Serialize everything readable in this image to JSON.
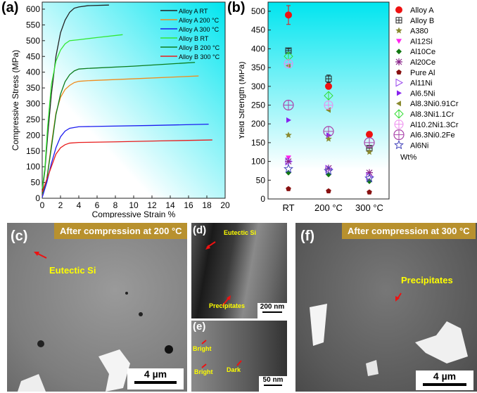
{
  "panel_labels": {
    "a": "(a)",
    "b": "(b)",
    "c": "(c)",
    "d": "(d)",
    "e": "(e)",
    "f": "(f)"
  },
  "chart_data": [
    {
      "type": "line",
      "xlabel": "Compressive Strain %",
      "ylabel": "Compressive Stress (MPa)",
      "xlim": [
        0,
        20
      ],
      "ylim": [
        0,
        620
      ],
      "xticks": [
        0,
        2,
        4,
        6,
        8,
        10,
        12,
        14,
        16,
        18,
        20
      ],
      "yticks": [
        0,
        50,
        100,
        150,
        200,
        250,
        300,
        350,
        400,
        450,
        500,
        550,
        600
      ],
      "legend_position": "top-right",
      "series": [
        {
          "name": "Alloy A RT",
          "color": "#222222",
          "points": [
            [
              0,
              20
            ],
            [
              0.3,
              90
            ],
            [
              0.6,
              200
            ],
            [
              1,
              330
            ],
            [
              1.5,
              450
            ],
            [
              2,
              525
            ],
            [
              2.5,
              565
            ],
            [
              3,
              590
            ],
            [
              3.5,
              603
            ],
            [
              4,
              607
            ],
            [
              5,
              611
            ],
            [
              7.3,
              613
            ]
          ]
        },
        {
          "name": "Alloy A 200 °C",
          "color": "#f08c1e",
          "points": [
            [
              0,
              5
            ],
            [
              0.5,
              60
            ],
            [
              1,
              170
            ],
            [
              1.5,
              270
            ],
            [
              2,
              320
            ],
            [
              2.5,
              345
            ],
            [
              3,
              358
            ],
            [
              3.5,
              367
            ],
            [
              4,
              371
            ],
            [
              5,
              373
            ],
            [
              10,
              379
            ],
            [
              17.1,
              388
            ]
          ]
        },
        {
          "name": "Alloy A 300 °C",
          "color": "#1c1cf0",
          "points": [
            [
              0,
              3
            ],
            [
              0.5,
              50
            ],
            [
              1,
              110
            ],
            [
              1.5,
              160
            ],
            [
              2,
              195
            ],
            [
              2.5,
              213
            ],
            [
              3,
              222
            ],
            [
              4,
              227
            ],
            [
              6,
              228
            ],
            [
              12,
              231
            ],
            [
              18.2,
              235
            ]
          ]
        },
        {
          "name": "Alloy B RT",
          "color": "#33e833",
          "points": [
            [
              0,
              30
            ],
            [
              0.3,
              100
            ],
            [
              0.6,
              230
            ],
            [
              1,
              360
            ],
            [
              1.5,
              435
            ],
            [
              2,
              470
            ],
            [
              2.5,
              490
            ],
            [
              3,
              500
            ],
            [
              4,
              503
            ],
            [
              6,
              510
            ],
            [
              8.8,
              519
            ]
          ]
        },
        {
          "name": "Alloy B 200 °C",
          "color": "#0b7d1e",
          "points": [
            [
              0,
              15
            ],
            [
              0.5,
              60
            ],
            [
              1,
              160
            ],
            [
              1.5,
              265
            ],
            [
              2,
              330
            ],
            [
              2.5,
              370
            ],
            [
              3,
              392
            ],
            [
              3.5,
              404
            ],
            [
              4,
              410
            ],
            [
              5,
              412
            ],
            [
              10,
              419
            ],
            [
              16.7,
              431
            ]
          ]
        },
        {
          "name": "Alloy B 300 °C",
          "color": "#e81c1c",
          "points": [
            [
              0,
              20
            ],
            [
              0.5,
              60
            ],
            [
              1,
              100
            ],
            [
              1.5,
              140
            ],
            [
              2,
              160
            ],
            [
              2.5,
              170
            ],
            [
              3,
              175
            ],
            [
              4,
              177
            ],
            [
              8,
              179
            ],
            [
              13,
              182
            ],
            [
              18.6,
              185
            ]
          ]
        }
      ]
    },
    {
      "type": "scatter",
      "ylabel": "Yield Strength (MPa)",
      "categories": [
        "RT",
        "200 °C",
        "300 °C"
      ],
      "ylim": [
        0,
        520
      ],
      "yticks": [
        0,
        50,
        100,
        150,
        200,
        250,
        300,
        350,
        400,
        450,
        500
      ],
      "legend_position": "right",
      "legend_note": "Wt%",
      "series": [
        {
          "name": "Alloy A",
          "marker": "circle-filled",
          "color": "#ee1111",
          "values": [
            490,
            300,
            172
          ],
          "error": [
            25,
            null,
            null
          ]
        },
        {
          "name": "Alloy B",
          "marker": "square-plus",
          "color": "#222222",
          "values": [
            395,
            320,
            135
          ],
          "error": [
            5,
            10,
            6
          ]
        },
        {
          "name": "A380",
          "marker": "star-filled",
          "color": "#8a8a30",
          "values": [
            170,
            160,
            125
          ]
        },
        {
          "name": "Al12Si",
          "marker": "triangle-down-filled",
          "color": "#ff22ee",
          "values": [
            110,
            null,
            null
          ]
        },
        {
          "name": "Al10Ce",
          "marker": "diamond-filled",
          "color": "#117711",
          "values": [
            70,
            65,
            47
          ]
        },
        {
          "name": "Al20Ce",
          "marker": "asterisk",
          "color": "#882288",
          "values": [
            100,
            82,
            70
          ]
        },
        {
          "name": "Pure Al",
          "marker": "pentagon-filled",
          "color": "#881111",
          "values": [
            27,
            21,
            18
          ]
        },
        {
          "name": "Al11Ni",
          "marker": "triangle-right-open",
          "color": "#9944ee",
          "values": [
            100,
            80,
            60
          ]
        },
        {
          "name": "Al6.5Ni",
          "marker": "triangle-right-filled",
          "color": "#8822ee",
          "values": [
            210,
            170,
            null
          ]
        },
        {
          "name": "Al8.3Ni0.91Cr",
          "marker": "triangle-left-filled",
          "color": "#8a8a30",
          "values": [
            355,
            237,
            null
          ]
        },
        {
          "name": "Al8.3Ni1.1Cr",
          "marker": "diamond-plus",
          "color": "#33dd33",
          "values": [
            380,
            275,
            null
          ]
        },
        {
          "name": "Al10.2Ni1.3Cr",
          "marker": "circle-plus",
          "color": "#ee88ee",
          "values": [
            360,
            250,
            null
          ]
        },
        {
          "name": "Al6.3Ni0.2Fe",
          "marker": "circle-plus-large",
          "color": "#aa44aa",
          "values": [
            250,
            180,
            150
          ]
        },
        {
          "name": "Al6Ni",
          "marker": "star-open",
          "color": "#4444bb",
          "values": [
            80,
            75,
            55
          ]
        }
      ]
    }
  ],
  "micrographs": {
    "c": {
      "banner": "After compression at 200 °C",
      "annotation": "Eutectic Si",
      "scale": "4 µm"
    },
    "d": {
      "annotation_top": "Eutectic Si",
      "annotation_bottom": "Precipitates",
      "scale": "200 nm"
    },
    "e": {
      "annotation_1": "Bright",
      "annotation_2": "Bright",
      "annotation_3": "Dark",
      "scale": "50 nm"
    },
    "f": {
      "banner": "After compression at 300 °C",
      "annotation": "Precipitates",
      "scale": "4 µm"
    }
  },
  "colors": {
    "arrow": "#ee1111",
    "annotation": "#ffff00",
    "banner": "#b8912e",
    "plot_bg_accent": "#00e5ef"
  }
}
